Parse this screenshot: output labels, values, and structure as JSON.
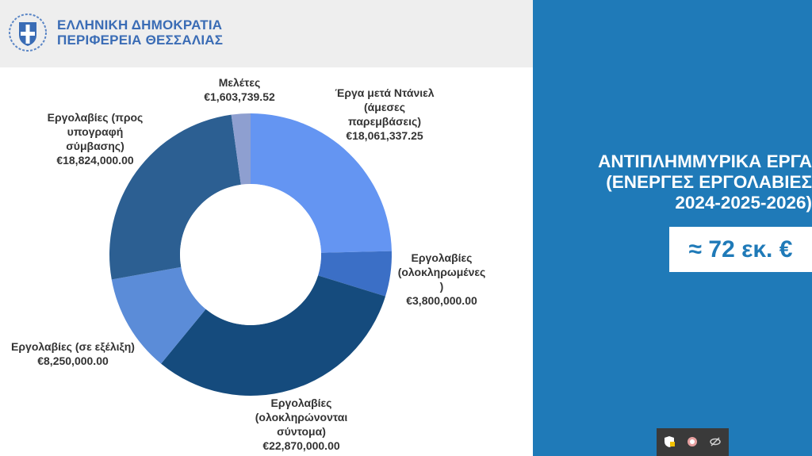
{
  "header": {
    "line1": "ΕΛΛΗΝΙΚΗ ΔΗΜΟΚΡΑΤΙΑ",
    "line2": "ΠΕΡΙΦΕΡΕΙΑ ΘΕΣΣΑΛΙΑΣ",
    "emblem_icon": "greek-coat-of-arms"
  },
  "panel": {
    "title_line1": "ΑΝΤΙΠΛΗΜΜΥΡΙΚΑ ΕΡΓΑ",
    "title_line2": "(ΕΝΕΡΓΕΣ ΕΡΓΟΛΑΒΙΕΣ",
    "title_line3": "2024-2025-2026)",
    "amount": "≈ 72 εκ. €"
  },
  "tray": {
    "icons": [
      "shield-icon",
      "network-icon",
      "eye-off-icon"
    ]
  },
  "colors": {
    "panel_bg": "#1f7ab8",
    "header_text": "#3a6cb5"
  },
  "chart_data": {
    "type": "pie",
    "donut": true,
    "title": "",
    "categories": [
      "Έργα μετά Ντάνιελ (άμεσες παρεμβάσεις)",
      "Εργολαβίες (ολοκληρωμένες )",
      "Εργολαβίες (ολοκληρώνονται σύντομα)",
      "Εργολαβίες (σε εξέλιξη)",
      "Εργολαβίες (προς υπογραφή σύμβασης)",
      "Μελέτες"
    ],
    "values": [
      18061337.25,
      3800000.0,
      22870000.0,
      8250000.0,
      18824000.0,
      1603739.52
    ],
    "value_labels": [
      "€18,061,337.25",
      "€3,800,000.00",
      "€22,870,000.00",
      "€8,250,000.00",
      "€18,824,000.00",
      "€1,603,739.52"
    ],
    "label_lines": [
      [
        "Έργα μετά Ντάνιελ",
        "(άμεσες",
        "παρεμβάσεις)"
      ],
      [
        "Εργολαβίες",
        "(ολοκληρωμένες",
        ")"
      ],
      [
        "Εργολαβίες",
        "(ολοκληρώνονται",
        "σύντομα)"
      ],
      [
        "Εργολαβίες (σε εξέλιξη)"
      ],
      [
        "Εργολαβίες (προς",
        "υπογραφή",
        "σύμβασης)"
      ],
      [
        "Μελέτες"
      ]
    ],
    "colors": [
      "#6495f2",
      "#3b6fc6",
      "#154b7d",
      "#5b8cd8",
      "#2c5f92",
      "#8e9fd0"
    ],
    "legend": "none"
  }
}
